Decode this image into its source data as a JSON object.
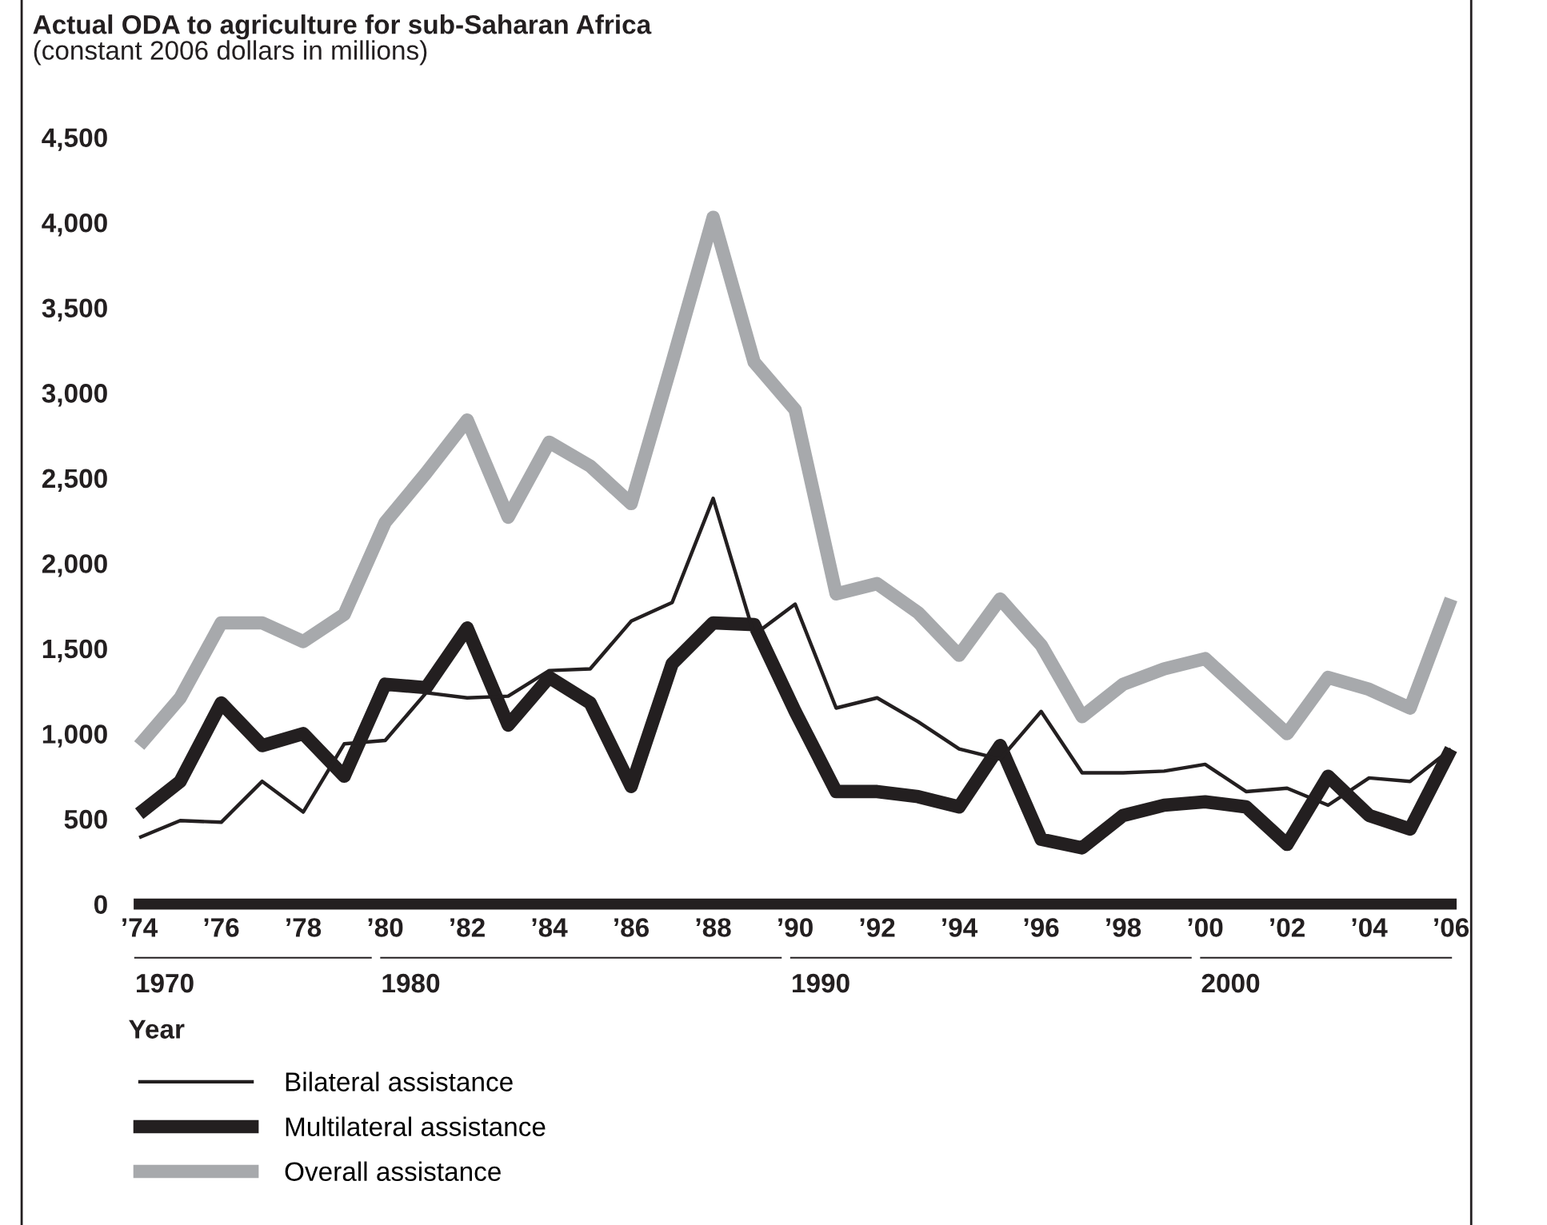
{
  "chart_data": {
    "type": "line",
    "title": "Actual ODA to agriculture for sub-Saharan Africa",
    "subtitle": "(constant 2006 dollars in millions)",
    "xlabel": "Year",
    "x": [
      1974,
      1975,
      1976,
      1977,
      1978,
      1979,
      1980,
      1981,
      1982,
      1983,
      1984,
      1985,
      1986,
      1987,
      1988,
      1989,
      1990,
      1991,
      1992,
      1993,
      1994,
      1995,
      1996,
      1997,
      1998,
      1999,
      2000,
      2001,
      2002,
      2003,
      2004,
      2005,
      2006
    ],
    "series": [
      {
        "name": "Bilateral assistance",
        "color": "#231f20",
        "values": [
          390,
          490,
          480,
          720,
          540,
          940,
          960,
          1240,
          1210,
          1220,
          1370,
          1380,
          1660,
          1770,
          2380,
          1580,
          1760,
          1150,
          1210,
          1070,
          910,
          850,
          1130,
          770,
          770,
          780,
          820,
          660,
          680,
          580,
          740,
          720,
          910
        ]
      },
      {
        "name": "Multilateral assistance",
        "color": "#231f20",
        "values": [
          530,
          720,
          1180,
          930,
          1000,
          750,
          1290,
          1270,
          1620,
          1050,
          1330,
          1180,
          690,
          1410,
          1650,
          1640,
          1130,
          660,
          660,
          630,
          570,
          930,
          380,
          330,
          520,
          580,
          600,
          570,
          350,
          750,
          520,
          440,
          910
        ]
      },
      {
        "name": "Overall assistance",
        "color": "#a7a9ac",
        "values": [
          930,
          1210,
          1650,
          1650,
          1540,
          1700,
          2240,
          2530,
          2840,
          2270,
          2710,
          2570,
          2350,
          3180,
          4030,
          3180,
          2900,
          1820,
          1880,
          1710,
          1460,
          1790,
          1520,
          1100,
          1290,
          1380,
          1440,
          1220,
          1000,
          1330,
          1260,
          1150,
          1790
        ]
      }
    ],
    "xlim": [
      1974,
      2006
    ],
    "xticks": [
      {
        "value": 1974,
        "label": "’74"
      },
      {
        "value": 1976,
        "label": "’76"
      },
      {
        "value": 1978,
        "label": "’78"
      },
      {
        "value": 1980,
        "label": "’80"
      },
      {
        "value": 1982,
        "label": "’82"
      },
      {
        "value": 1984,
        "label": "’84"
      },
      {
        "value": 1986,
        "label": "’86"
      },
      {
        "value": 1988,
        "label": "’88"
      },
      {
        "value": 1990,
        "label": "’90"
      },
      {
        "value": 1992,
        "label": "’92"
      },
      {
        "value": 1994,
        "label": "’94"
      },
      {
        "value": 1996,
        "label": "’96"
      },
      {
        "value": 1998,
        "label": "’98"
      },
      {
        "value": 2000,
        "label": "’00"
      },
      {
        "value": 2002,
        "label": "’02"
      },
      {
        "value": 2004,
        "label": "’04"
      },
      {
        "value": 2006,
        "label": "’06"
      }
    ],
    "ylim": [
      0,
      4500
    ],
    "yticks": [
      0,
      {
        "value": 500,
        "label": "500"
      },
      {
        "value": 1000,
        "label": "1,000"
      },
      {
        "value": 1500,
        "label": "1,500"
      },
      {
        "value": 2000,
        "label": "2,000"
      },
      {
        "value": 2500,
        "label": "2,500"
      },
      {
        "value": 3000,
        "label": "3,000"
      },
      {
        "value": 3500,
        "label": "3,500"
      },
      {
        "value": 4000,
        "label": "4,000"
      },
      {
        "value": 4500,
        "label": "4,500"
      }
    ],
    "annotations": [
      "1970",
      "1980",
      "1990",
      "2000"
    ],
    "grid": false,
    "legend": "bottom left",
    "marker": "none",
    "line_style": "solid"
  }
}
